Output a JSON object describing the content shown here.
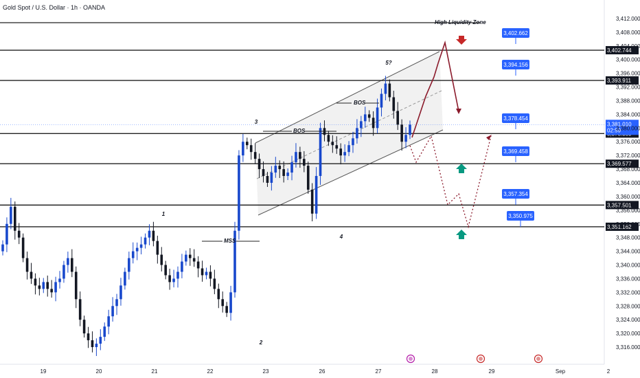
{
  "header": {
    "title": "Gold Spot / U.S. Dollar · 1h · OANDA"
  },
  "chart_data": {
    "type": "candlestick",
    "title": "Gold Spot / U.S. Dollar · 1h · OANDA",
    "ylim": [
      3314,
      3414
    ],
    "y_ticks": [
      "3,316.000",
      "3,320.000",
      "3,324.000",
      "3,328.000",
      "3,332.000",
      "3,336.000",
      "3,340.000",
      "3,344.000",
      "3,348.000",
      "3,352.000",
      "3,356.000",
      "3,360.000",
      "3,364.000",
      "3,368.000",
      "3,372.000",
      "3,376.000",
      "3,380.000",
      "3,384.000",
      "3,388.000",
      "3,392.000",
      "3,396.000",
      "3,400.000",
      "3,404.000",
      "3,408.000",
      "3,412.000"
    ],
    "x_ticks": [
      "19",
      "20",
      "21",
      "22",
      "23",
      "26",
      "27",
      "28",
      "29",
      "Sep",
      "2"
    ],
    "current_price": {
      "value": "3,381.010",
      "countdown": "02:59"
    },
    "levels": [
      {
        "value": 3402.744,
        "label": "3,402.744"
      },
      {
        "value": 3393.911,
        "label": "3,393.911"
      },
      {
        "value": 3378.389,
        "label": "3,378.389"
      },
      {
        "value": 3369.577,
        "label": "3,369.577"
      },
      {
        "value": 3357.501,
        "label": "3,357.501"
      },
      {
        "value": 3351.162,
        "label": "3,351.162"
      }
    ],
    "price_tags": [
      "3,402.662",
      "3,394.156",
      "3,378.454",
      "3,369.458",
      "3,357.354",
      "3,350.975"
    ],
    "annotations": {
      "high_liquidity_zone": "High Liquidity Zone",
      "bos_1": "BOS",
      "bos_2": "BOS",
      "mss": "MSS",
      "wave_1": "1",
      "wave_2": "2",
      "wave_3": "3",
      "wave_4": "4",
      "wave_5": "5?"
    },
    "ohlc_close_path": [
      3346,
      3352,
      3357,
      3350,
      3348,
      3342,
      3338,
      3336,
      3334,
      3333,
      3335,
      3333,
      3332,
      3335,
      3336,
      3340,
      3342,
      3338,
      3330,
      3324,
      3320,
      3318,
      3316,
      3317,
      3319,
      3322,
      3325,
      3328,
      3330,
      3334,
      3338,
      3342,
      3344,
      3345,
      3346,
      3348,
      3350,
      3347,
      3343,
      3340,
      3337,
      3335,
      3336,
      3338,
      3341,
      3343,
      3342,
      3341,
      3339,
      3337,
      3338,
      3336,
      3333,
      3330,
      3328,
      3326,
      3332,
      3350,
      3372,
      3376,
      3375,
      3373,
      3371,
      3368,
      3366,
      3364,
      3367,
      3369,
      3368,
      3366,
      3367,
      3370,
      3373,
      3371,
      3369,
      3362,
      3355,
      3366,
      3380,
      3378,
      3376,
      3375,
      3374,
      3372,
      3373,
      3375,
      3377,
      3380,
      3382,
      3384,
      3383,
      3380,
      3386,
      3390,
      3393,
      3389,
      3385,
      3381,
      3376,
      3378,
      3381
    ]
  }
}
